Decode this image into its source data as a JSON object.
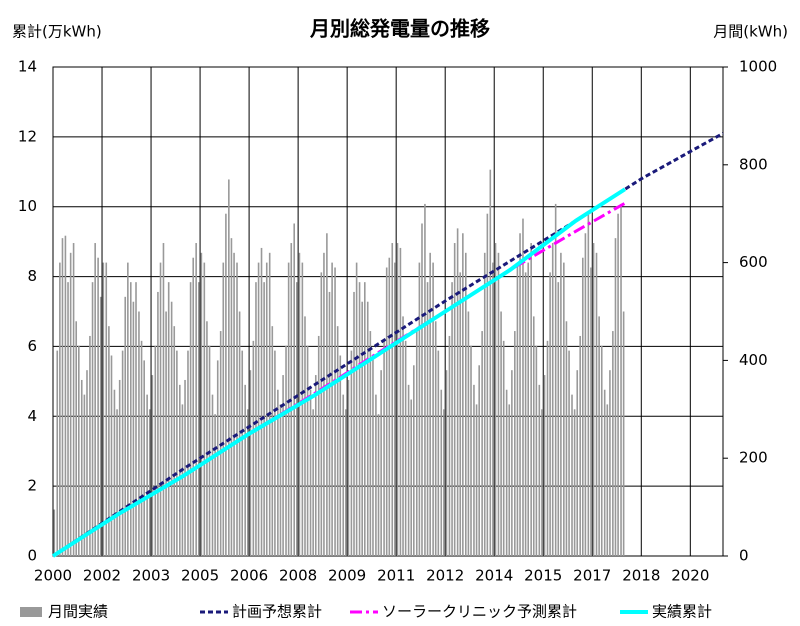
{
  "chart_data": {
    "type": "bar",
    "title": "月別総発電量の推移",
    "ylabel": "累計(万kWh)",
    "y2label": "月間(kWh)",
    "xlim": [
      2000,
      2020.5
    ],
    "xticks": [
      2000,
      {
        "value": 2001.5,
        "label": "2002"
      },
      2003,
      {
        "value": 2004.5,
        "label": "2005"
      },
      2006,
      {
        "value": 2007.5,
        "label": "2008"
      },
      2009,
      {
        "value": 2010.5,
        "label": "2011"
      },
      2012,
      {
        "value": 2013.5,
        "label": "2014"
      },
      2015,
      {
        "value": 2016.5,
        "label": "2017"
      },
      2018,
      {
        "value": 2019.5,
        "label": "2020"
      }
    ],
    "ylim": [
      0,
      14
    ],
    "yticks": [
      0,
      2,
      4,
      6,
      8,
      10,
      12,
      14
    ],
    "y2lim": [
      0,
      1000
    ],
    "y2ticks": [
      0,
      200,
      400,
      600,
      800,
      1000
    ],
    "grid": true,
    "legend": "bottom",
    "series": [
      {
        "name": "月間実績",
        "type": "bar",
        "axis": "y2",
        "color": "#999999",
        "x": [
          2000.04,
          2000.13,
          2000.21,
          2000.29,
          2000.38,
          2000.46,
          2000.54,
          2000.63,
          2000.71,
          2000.79,
          2000.88,
          2000.96,
          2001.04,
          2001.13,
          2001.21,
          2001.29,
          2001.38,
          2001.46,
          2001.54,
          2001.63,
          2001.71,
          2001.79,
          2001.88,
          2001.96,
          2002.04,
          2002.13,
          2002.21,
          2002.29,
          2002.38,
          2002.46,
          2002.54,
          2002.63,
          2002.71,
          2002.79,
          2002.88,
          2002.96,
          2003.04,
          2003.13,
          2003.21,
          2003.29,
          2003.38,
          2003.46,
          2003.54,
          2003.63,
          2003.71,
          2003.79,
          2003.88,
          2003.96,
          2004.04,
          2004.13,
          2004.21,
          2004.29,
          2004.38,
          2004.46,
          2004.54,
          2004.63,
          2004.71,
          2004.79,
          2004.88,
          2004.96,
          2005.04,
          2005.13,
          2005.21,
          2005.29,
          2005.38,
          2005.46,
          2005.54,
          2005.63,
          2005.71,
          2005.79,
          2005.88,
          2005.96,
          2006.04,
          2006.13,
          2006.21,
          2006.29,
          2006.38,
          2006.46,
          2006.54,
          2006.63,
          2006.71,
          2006.79,
          2006.88,
          2006.96,
          2007.04,
          2007.13,
          2007.21,
          2007.29,
          2007.38,
          2007.46,
          2007.54,
          2007.63,
          2007.71,
          2007.79,
          2007.88,
          2007.96,
          2008.04,
          2008.13,
          2008.21,
          2008.29,
          2008.38,
          2008.46,
          2008.54,
          2008.63,
          2008.71,
          2008.79,
          2008.88,
          2008.96,
          2009.04,
          2009.13,
          2009.21,
          2009.29,
          2009.38,
          2009.46,
          2009.54,
          2009.63,
          2009.71,
          2009.79,
          2009.88,
          2009.96,
          2010.04,
          2010.13,
          2010.21,
          2010.29,
          2010.38,
          2010.46,
          2010.54,
          2010.63,
          2010.71,
          2010.79,
          2010.88,
          2010.96,
          2011.04,
          2011.13,
          2011.21,
          2011.29,
          2011.38,
          2011.46,
          2011.54,
          2011.63,
          2011.71,
          2011.79,
          2011.88,
          2011.96,
          2012.04,
          2012.13,
          2012.21,
          2012.29,
          2012.38,
          2012.46,
          2012.54,
          2012.63,
          2012.71,
          2012.79,
          2012.88,
          2012.96,
          2013.04,
          2013.13,
          2013.21,
          2013.29,
          2013.38,
          2013.46,
          2013.54,
          2013.63,
          2013.71,
          2013.79,
          2013.88,
          2013.96,
          2014.04,
          2014.13,
          2014.21,
          2014.29,
          2014.38,
          2014.46,
          2014.54,
          2014.63,
          2014.71,
          2014.79,
          2014.88,
          2014.96,
          2015.04,
          2015.13,
          2015.21,
          2015.29,
          2015.38,
          2015.46,
          2015.54,
          2015.63,
          2015.71,
          2015.79,
          2015.88,
          2015.96,
          2016.04,
          2016.13,
          2016.21,
          2016.29,
          2016.38,
          2016.46,
          2016.54,
          2016.63,
          2016.71,
          2016.79,
          2016.88,
          2016.96,
          2017.04,
          2017.13,
          2017.21,
          2017.29,
          2017.38,
          2017.46
        ],
        "values": [
          95,
          420,
          600,
          650,
          655,
          560,
          620,
          640,
          480,
          430,
          360,
          330,
          380,
          450,
          560,
          640,
          610,
          530,
          600,
          600,
          470,
          410,
          340,
          300,
          360,
          420,
          530,
          600,
          560,
          520,
          560,
          500,
          440,
          400,
          330,
          300,
          370,
          430,
          540,
          600,
          640,
          500,
          560,
          520,
          470,
          420,
          350,
          310,
          360,
          420,
          560,
          610,
          640,
          560,
          620,
          600,
          480,
          430,
          330,
          290,
          400,
          460,
          600,
          700,
          770,
          650,
          620,
          600,
          500,
          420,
          350,
          300,
          380,
          440,
          560,
          600,
          630,
          560,
          600,
          620,
          470,
          420,
          340,
          310,
          370,
          430,
          600,
          640,
          680,
          560,
          620,
          600,
          490,
          430,
          340,
          300,
          370,
          450,
          580,
          620,
          660,
          540,
          600,
          590,
          470,
          410,
          330,
          300,
          360,
          420,
          540,
          600,
          560,
          520,
          560,
          520,
          460,
          410,
          330,
          290,
          380,
          440,
          590,
          610,
          640,
          600,
          640,
          630,
          490,
          440,
          350,
          320,
          390,
          460,
          600,
          680,
          720,
          560,
          620,
          600,
          480,
          420,
          340,
          300,
          380,
          450,
          560,
          640,
          670,
          580,
          660,
          620,
          500,
          430,
          350,
          310,
          390,
          460,
          620,
          700,
          790,
          600,
          640,
          620,
          500,
          440,
          340,
          310,
          380,
          460,
          600,
          660,
          690,
          580,
          600,
          640,
          490,
          430,
          350,
          300,
          370,
          440,
          580,
          640,
          720,
          560,
          620,
          600,
          480,
          420,
          330,
          300,
          380,
          450,
          610,
          660,
          700,
          590,
          640,
          620,
          490,
          430,
          340,
          310,
          380,
          460,
          650,
          700,
          720,
          500
        ]
      },
      {
        "name": "計画予想累計",
        "type": "line",
        "dash": "dashed",
        "color": "#1a1a7a",
        "x": [
          2000,
          2004,
          2006,
          2008,
          2010,
          2012,
          2014,
          2016,
          2018,
          2020.5
        ],
        "values": [
          0,
          2.5,
          3.7,
          4.9,
          6.1,
          7.3,
          8.45,
          9.6,
          10.8,
          12.1
        ]
      },
      {
        "name": "ソーラークリニック予測累計",
        "type": "line",
        "dash": "dashdot",
        "color": "#ff00ff",
        "x": [
          2004,
          2006,
          2008,
          2010,
          2012,
          2014,
          2016,
          2017.5
        ],
        "values": [
          2.3,
          3.5,
          4.65,
          5.85,
          7.0,
          8.2,
          9.3,
          10.1
        ]
      },
      {
        "name": "実績累計",
        "type": "line",
        "dash": "solid",
        "color": "#00ffff",
        "x": [
          2000,
          2002,
          2004,
          2006,
          2008,
          2010,
          2012,
          2014,
          2016,
          2017.5
        ],
        "values": [
          0,
          1.2,
          2.3,
          3.5,
          4.6,
          5.8,
          7.0,
          8.2,
          9.6,
          10.5
        ]
      }
    ]
  }
}
